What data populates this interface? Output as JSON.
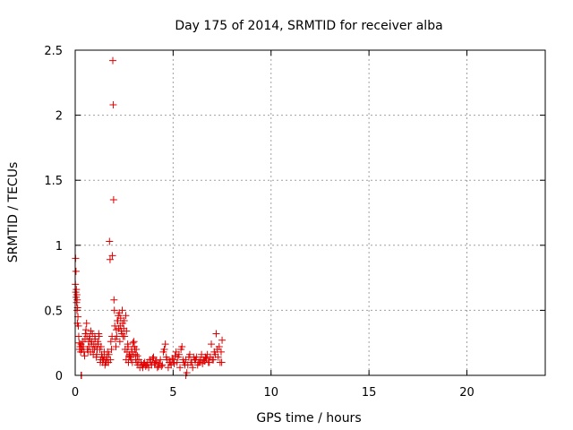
{
  "chart_data": {
    "type": "scatter",
    "title": "Day 175 of 2014, SRMTID for receiver alba",
    "xlabel": "GPS time / hours",
    "ylabel": "SRMTID / TECUs",
    "xlim": [
      0,
      24
    ],
    "ylim": [
      0,
      2.5
    ],
    "xticks": [
      0,
      5,
      10,
      15,
      20
    ],
    "yticks": [
      0,
      0.5,
      1,
      1.5,
      2,
      2.5
    ],
    "ytick_labels": [
      "0",
      "0.5",
      "1",
      "1.5",
      "2",
      "2.5"
    ],
    "grid": true,
    "marker": "plus",
    "color": "#e00000",
    "series": [
      {
        "x": [
          0.02,
          0.04,
          0.06,
          0.08,
          0.1,
          0.12,
          0.14,
          0.16,
          0.18,
          0.2,
          0.22,
          0.25,
          0.28,
          0.3,
          0.33,
          0.36,
          0.4,
          0.45,
          0.5,
          0.55,
          0.6,
          0.65,
          0.7,
          0.75,
          0.8,
          0.85,
          0.9,
          0.95,
          1.0,
          1.05,
          1.1,
          1.15,
          1.2,
          1.25,
          1.3,
          1.35,
          1.4,
          1.45,
          1.5,
          1.55,
          1.6,
          1.65,
          1.7,
          1.75,
          1.78,
          1.8,
          1.85,
          1.9,
          1.92,
          1.94,
          1.96,
          1.98,
          2.0,
          2.05,
          2.1,
          2.15,
          2.2,
          2.25,
          2.3,
          2.35,
          2.4,
          2.45,
          2.5,
          2.55,
          2.6,
          2.65,
          2.7,
          2.75,
          2.8,
          2.85,
          2.9,
          2.95,
          3.0,
          3.05,
          3.1,
          3.15,
          3.2,
          3.3,
          3.4,
          3.5,
          3.6,
          3.7,
          3.8,
          3.9,
          4.0,
          4.1,
          4.2,
          4.3,
          4.4,
          4.5,
          4.6,
          4.7,
          4.8,
          4.9,
          5.0,
          5.1,
          5.2,
          5.3,
          5.4,
          5.5,
          5.6,
          5.7,
          5.8,
          5.9,
          6.0,
          6.1,
          6.2,
          6.3,
          6.4,
          6.5,
          6.6,
          6.7,
          6.8,
          6.9,
          7.0,
          7.1,
          7.2,
          7.3,
          7.4,
          7.5,
          0.01,
          0.03,
          0.05,
          0.07,
          0.09,
          0.11,
          0.35,
          0.42,
          0.48,
          0.52,
          0.58,
          0.62,
          0.68,
          0.72,
          0.78,
          0.82,
          0.88,
          0.92,
          0.98,
          1.02,
          1.08,
          1.12,
          1.18,
          1.22,
          1.28,
          1.32,
          1.38,
          1.42,
          1.48,
          1.52,
          1.58,
          1.62,
          1.68,
          1.72,
          1.82,
          1.88,
          2.02,
          2.08,
          2.12,
          2.18,
          2.22,
          2.28,
          2.32,
          2.38,
          2.42,
          2.48,
          2.52,
          2.58,
          2.62,
          2.68,
          2.72,
          2.78,
          2.82,
          2.88,
          2.92,
          2.98,
          3.02,
          3.08,
          3.12,
          3.18,
          3.25,
          3.35,
          3.45,
          3.55,
          3.65,
          3.75,
          3.85,
          3.95,
          4.05,
          4.15,
          4.25,
          4.35,
          4.45,
          4.55,
          4.65,
          4.75,
          4.85,
          4.95,
          5.05,
          5.15,
          5.25,
          5.35,
          5.45,
          5.55,
          5.65,
          5.75,
          5.85,
          5.95,
          6.05,
          6.15,
          6.25,
          6.35,
          6.45,
          6.55,
          6.65,
          6.75,
          6.85,
          6.95,
          7.05,
          7.15,
          7.25,
          7.35,
          7.45,
          7.48,
          0.3,
          0.32,
          5.65
        ],
        "y": [
          0.9,
          0.8,
          0.66,
          0.62,
          0.58,
          0.52,
          0.45,
          0.38,
          0.3,
          0.25,
          0.2,
          0.22,
          0.18,
          0.24,
          0.2,
          0.22,
          0.26,
          0.18,
          0.28,
          0.35,
          0.3,
          0.18,
          0.22,
          0.28,
          0.34,
          0.26,
          0.2,
          0.24,
          0.3,
          0.22,
          0.16,
          0.26,
          0.32,
          0.2,
          0.12,
          0.16,
          0.1,
          0.12,
          0.14,
          0.1,
          0.12,
          0.18,
          0.1,
          1.03,
          0.89,
          0.12,
          0.2,
          0.92,
          2.42,
          2.08,
          1.35,
          0.58,
          0.5,
          0.28,
          0.35,
          0.42,
          0.46,
          0.48,
          0.38,
          0.34,
          0.5,
          0.3,
          0.42,
          0.2,
          0.12,
          0.18,
          0.22,
          0.15,
          0.14,
          0.12,
          0.18,
          0.25,
          0.26,
          0.2,
          0.16,
          0.1,
          0.08,
          0.06,
          0.08,
          0.09,
          0.07,
          0.1,
          0.12,
          0.08,
          0.14,
          0.1,
          0.06,
          0.09,
          0.07,
          0.18,
          0.24,
          0.12,
          0.1,
          0.08,
          0.12,
          0.15,
          0.1,
          0.16,
          0.2,
          0.12,
          0.08,
          0.02,
          0.14,
          0.1,
          0.06,
          0.12,
          0.14,
          0.1,
          0.12,
          0.09,
          0.11,
          0.13,
          0.1,
          0.14,
          0.12,
          0.18,
          0.32,
          0.14,
          0.1,
          0.27,
          0.7,
          0.64,
          0.6,
          0.56,
          0.5,
          0.4,
          0.2,
          0.22,
          0.15,
          0.32,
          0.4,
          0.2,
          0.26,
          0.3,
          0.18,
          0.24,
          0.32,
          0.16,
          0.2,
          0.28,
          0.14,
          0.2,
          0.24,
          0.3,
          0.1,
          0.22,
          0.14,
          0.12,
          0.18,
          0.08,
          0.1,
          0.14,
          0.1,
          0.16,
          0.26,
          0.3,
          0.38,
          0.22,
          0.3,
          0.42,
          0.36,
          0.26,
          0.44,
          0.32,
          0.4,
          0.36,
          0.3,
          0.46,
          0.34,
          0.24,
          0.1,
          0.16,
          0.14,
          0.2,
          0.1,
          0.16,
          0.22,
          0.12,
          0.2,
          0.15,
          0.12,
          0.1,
          0.06,
          0.1,
          0.08,
          0.06,
          0.1,
          0.13,
          0.09,
          0.11,
          0.07,
          0.12,
          0.08,
          0.2,
          0.14,
          0.06,
          0.1,
          0.13,
          0.09,
          0.18,
          0.14,
          0.06,
          0.22,
          0.1,
          0.12,
          0.08,
          0.16,
          0.1,
          0.14,
          0.12,
          0.08,
          0.1,
          0.16,
          0.12,
          0.14,
          0.16,
          0.1,
          0.24,
          0.12,
          0.16,
          0.2,
          0.22,
          0.18,
          0.1,
          0.0,
          0.0,
          0.0
        ]
      }
    ]
  }
}
